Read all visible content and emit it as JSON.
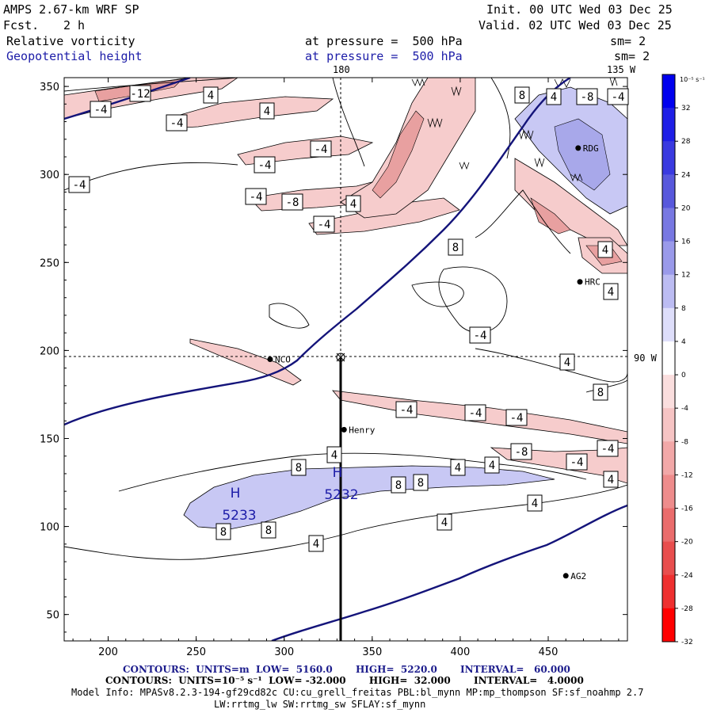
{
  "header": {
    "model": "AMPS 2.67-km WRF SP",
    "fcst_label": "Fcst.",
    "fcst_value": "2 h",
    "init": "Init. 00 UTC Wed 03 Dec 25",
    "valid": "Valid. 02 UTC Wed 03 Dec 25",
    "field1_name": "Relative vorticity",
    "field1_level": "at pressure =  500 hPa",
    "field1_sm": "sm= 2",
    "field2_name": "Geopotential height",
    "field2_level": "at pressure =  500 hPa",
    "field2_sm": "sm= 2"
  },
  "map_labels": {
    "top_lon_180": "180",
    "top_lon_135w": "135 W",
    "right_lon_90w": "90 W"
  },
  "colors": {
    "height_contour": "#14147a",
    "positive_fill": "#c8c8f4",
    "negative_fill": "#f4c8c8",
    "strong_negative_fill": "#e8a0a0"
  },
  "stations": [
    {
      "name": "RDG",
      "x": 467,
      "y": 315
    },
    {
      "name": "HRC",
      "x": 468,
      "y": 239
    },
    {
      "name": "NCO",
      "x": 292,
      "y": 195
    },
    {
      "name": "Henry",
      "x": 334,
      "y": 155
    },
    {
      "name": "AG2",
      "x": 460,
      "y": 72
    }
  ],
  "highs": [
    {
      "label": "H",
      "value": "5233"
    },
    {
      "label": "H",
      "value": "5232"
    }
  ],
  "contour_labels": [
    "-12",
    "4",
    "-4",
    "-4",
    "4",
    "-4",
    "-4",
    "-4",
    "-4",
    "-8",
    "-4",
    "4",
    "8",
    "8",
    "4",
    "-8",
    "-4",
    "4",
    "4",
    "-4",
    "-4",
    "-4",
    "-4",
    "-8",
    "-4",
    "-4",
    "4",
    "4",
    "8",
    "8",
    "8",
    "8",
    "4",
    "8",
    "8",
    "4",
    "4",
    "4",
    "4",
    "4"
  ],
  "chart_data": {
    "type": "contour-map",
    "fields": [
      {
        "name": "Relative vorticity",
        "units": "10^-5 s^-1",
        "low": -32.0,
        "high": 32.0,
        "interval": 4.0
      },
      {
        "name": "Geopotential height",
        "units": "m",
        "low": 5160.0,
        "high": 5220.0,
        "interval": 60.0
      }
    ],
    "x_ticks": [
      200,
      250,
      300,
      350,
      400,
      450
    ],
    "y_ticks": [
      50,
      100,
      150,
      200,
      250,
      300,
      350
    ],
    "xlim": [
      175,
      495
    ],
    "ylim": [
      35,
      355
    ],
    "colorbar": {
      "unit": "10⁻⁵ s⁻¹",
      "ticks": [
        32,
        28,
        24,
        20,
        16,
        12,
        8,
        4,
        0,
        -4,
        -8,
        -12,
        -16,
        -20,
        -24,
        -28,
        -32
      ],
      "colors": [
        "#0000ee",
        "#1f1fe6",
        "#3a3ae0",
        "#5858dc",
        "#7878e2",
        "#9a9aea",
        "#bcbcf2",
        "#dedefa",
        "#ffffff",
        "#fadede",
        "#f6c4c4",
        "#f2a8a8",
        "#ee8c8c",
        "#ea6c6c",
        "#e84e4e",
        "#ee3030",
        "#ff0000"
      ]
    }
  },
  "footer": {
    "line1": "CONTOURS:  UNITS=m  LOW=  5160.0       HIGH=  5220.0       INTERVAL=   60.000",
    "line2": "CONTOURS:  UNITS=10⁻⁵ s⁻¹  LOW= -32.000       HIGH=  32.000       INTERVAL=   4.0000",
    "line3": "Model Info: MPASv8.2.3-194-gf29cd82c CU:cu_grell_freitas PBL:bl_mynn MP:mp_thompson SF:sf_noahmp 2.7",
    "line4": "LW:rrtmg_lw SW:rrtmg_sw SFLAY:sf_mynn"
  }
}
